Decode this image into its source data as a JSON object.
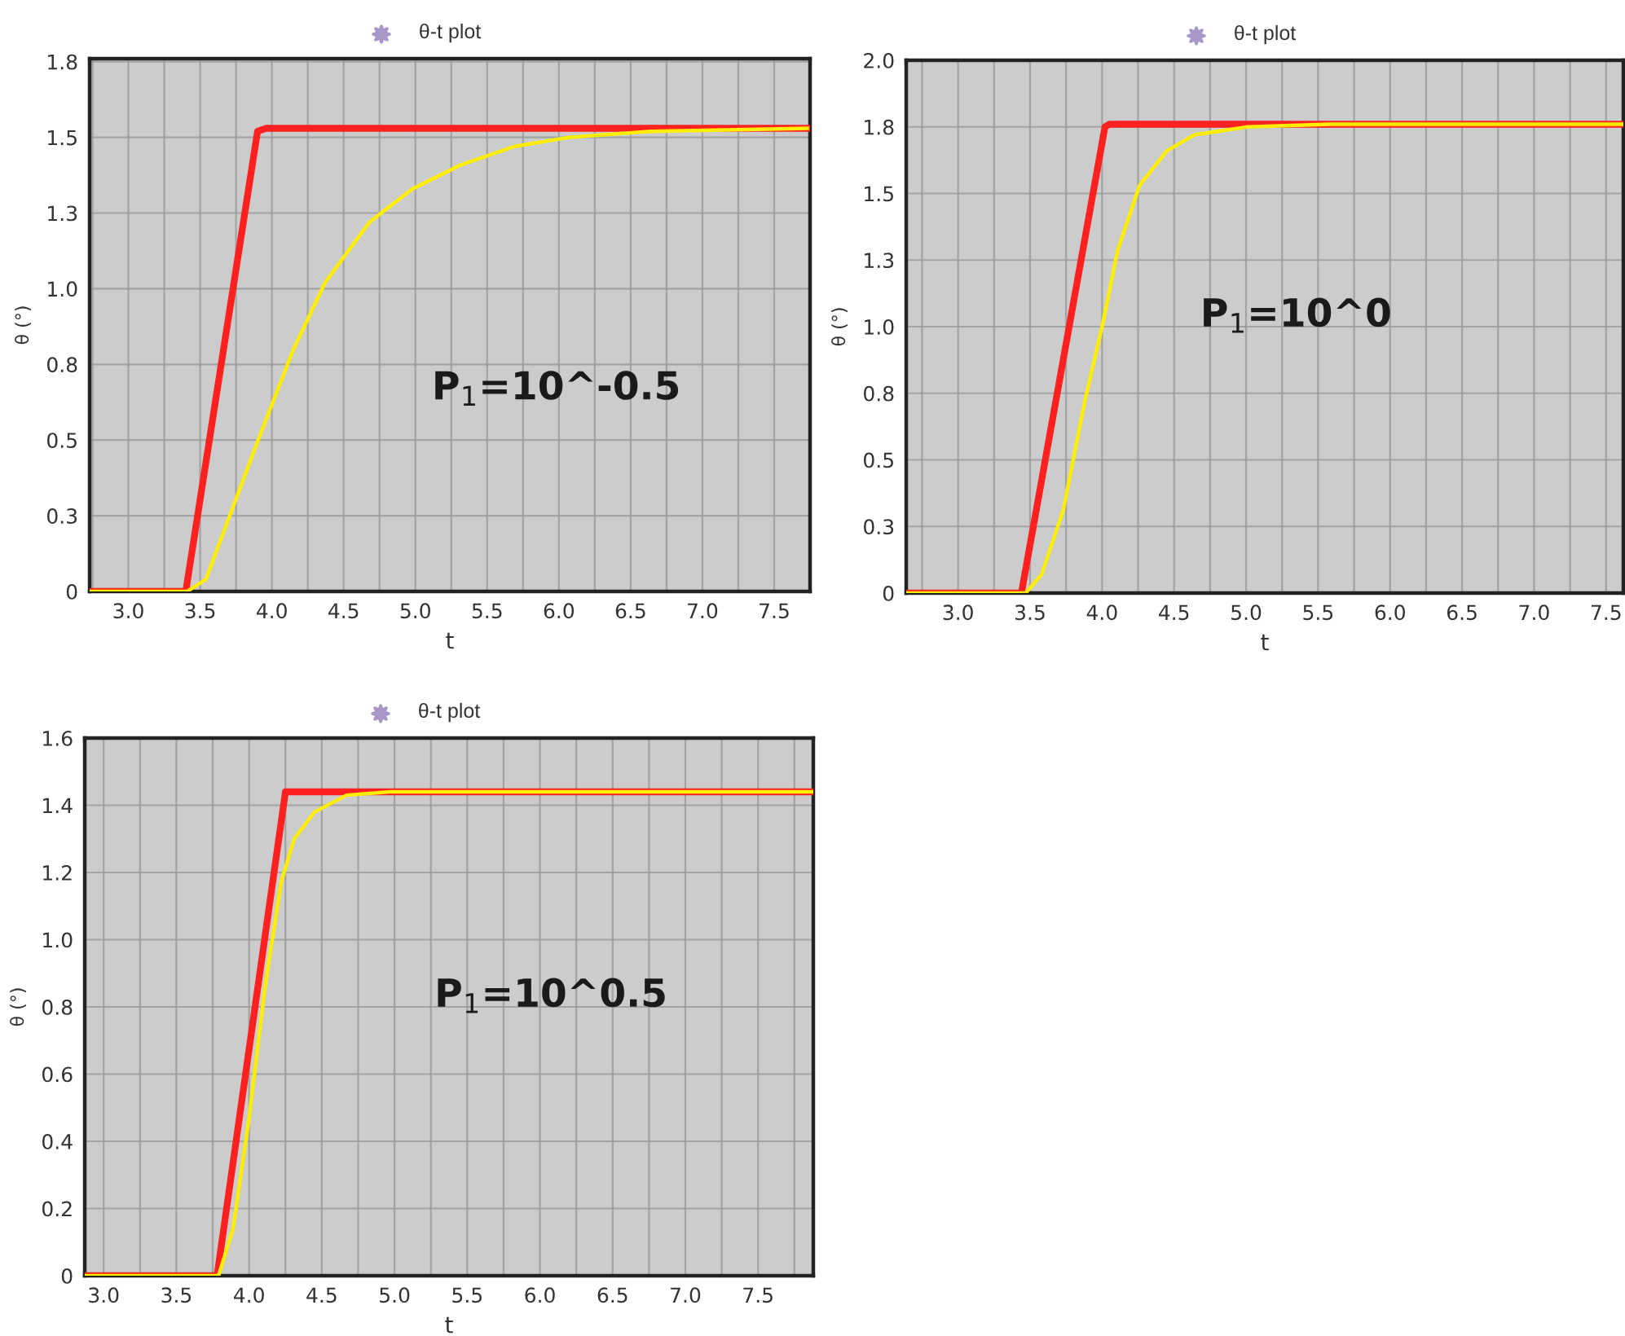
{
  "chart_data": [
    {
      "type": "line",
      "title": "θ-t plot",
      "xlabel": "t",
      "ylabel": "θ (°)",
      "annotations": [
        "P$_{1}$=10^-0.5"
      ],
      "grid": true,
      "line_style": "solid",
      "marker": "none",
      "xlim": [
        2.73,
        7.75
      ],
      "ylim": [
        0,
        1.76
      ],
      "xticks": [
        {
          "value": 2.75,
          "label": null
        },
        {
          "value": 3,
          "label": "3.0"
        },
        {
          "value": 3.25,
          "label": null
        },
        3.5,
        {
          "value": 3.75,
          "label": null
        },
        {
          "value": 4,
          "label": "4.0"
        },
        {
          "value": 4.25,
          "label": null
        },
        4.5,
        {
          "value": 4.75,
          "label": null
        },
        {
          "value": 5,
          "label": "5.0"
        },
        {
          "value": 5.25,
          "label": null
        },
        5.5,
        {
          "value": 5.75,
          "label": null
        },
        {
          "value": 6,
          "label": "6.0"
        },
        {
          "value": 6.25,
          "label": null
        },
        6.5,
        {
          "value": 6.75,
          "label": null
        },
        {
          "value": 7,
          "label": "7.0"
        },
        {
          "value": 7.25,
          "label": null
        },
        7.5
      ],
      "yticks": [
        0,
        {
          "value": 0.25,
          "label": "0.3"
        },
        0.5,
        {
          "value": 0.75,
          "label": "0.8"
        },
        {
          "value": 1,
          "label": "1.0"
        },
        {
          "value": 1.25,
          "label": "1.3"
        },
        1.5,
        {
          "value": 1.75,
          "label": "1.8"
        }
      ],
      "series": [
        {
          "color": "#ff2020",
          "x": [
            2.73,
            3.4,
            3.9,
            3.96,
            7.75
          ],
          "values": [
            0,
            0,
            1.52,
            1.53,
            1.53
          ]
        },
        {
          "color": "#ffee00",
          "x": [
            2.73,
            3.41,
            3.54,
            3.69,
            3.92,
            4.15,
            4.37,
            4.68,
            4.98,
            5.32,
            5.69,
            6.07,
            6.64,
            7.73
          ],
          "values": [
            0,
            0,
            0.04,
            0.23,
            0.52,
            0.8,
            1.02,
            1.22,
            1.33,
            1.41,
            1.47,
            1.5,
            1.52,
            1.53
          ]
        }
      ]
    },
    {
      "type": "line",
      "title": "θ-t plot",
      "xlabel": "t",
      "ylabel": "θ (°)",
      "annotations": [
        "P$_{1}$=10^0"
      ],
      "grid": true,
      "line_style": "solid",
      "marker": "none",
      "xlim": [
        2.64,
        7.62
      ],
      "ylim": [
        0,
        2
      ],
      "xticks": [
        {
          "value": 2.75,
          "label": null
        },
        {
          "value": 3,
          "label": "3.0"
        },
        {
          "value": 3.25,
          "label": null
        },
        3.5,
        {
          "value": 3.75,
          "label": null
        },
        {
          "value": 4,
          "label": "4.0"
        },
        {
          "value": 4.25,
          "label": null
        },
        4.5,
        {
          "value": 4.75,
          "label": null
        },
        {
          "value": 5,
          "label": "5.0"
        },
        {
          "value": 5.25,
          "label": null
        },
        5.5,
        {
          "value": 5.75,
          "label": null
        },
        {
          "value": 6,
          "label": "6.0"
        },
        {
          "value": 6.25,
          "label": null
        },
        6.5,
        {
          "value": 6.75,
          "label": null
        },
        {
          "value": 7,
          "label": "7.0"
        },
        {
          "value": 7.25,
          "label": null
        },
        7.5
      ],
      "yticks": [
        0,
        {
          "value": 0.25,
          "label": "0.3"
        },
        0.5,
        {
          "value": 0.75,
          "label": "0.8"
        },
        {
          "value": 1,
          "label": "1.0"
        },
        {
          "value": 1.25,
          "label": "1.3"
        },
        1.5,
        {
          "value": 1.75,
          "label": "1.8"
        },
        {
          "value": 2,
          "label": "2.0"
        }
      ],
      "series": [
        {
          "color": "#ff2020",
          "x": [
            2.64,
            3.44,
            4.02,
            4.05,
            7.62
          ],
          "values": [
            0,
            0,
            1.75,
            1.76,
            1.76
          ]
        },
        {
          "color": "#ffee00",
          "x": [
            2.64,
            3.47,
            3.58,
            3.73,
            3.88,
            4.0,
            4.11,
            4.26,
            4.45,
            4.64,
            5.01,
            5.58,
            7.62
          ],
          "values": [
            0,
            0,
            0.07,
            0.31,
            0.72,
            1.0,
            1.29,
            1.53,
            1.66,
            1.72,
            1.75,
            1.76,
            1.76
          ]
        }
      ]
    },
    {
      "type": "line",
      "title": "θ-t plot",
      "xlabel": "t",
      "ylabel": "θ (°)",
      "annotations": [
        "P$_{1}$=10^0.5"
      ],
      "grid": true,
      "line_style": "solid",
      "marker": "none",
      "xlim": [
        2.87,
        7.88
      ],
      "ylim": [
        0,
        1.6
      ],
      "xticks": [
        {
          "value": 3,
          "label": "3.0"
        },
        {
          "value": 3.25,
          "label": null
        },
        3.5,
        {
          "value": 3.75,
          "label": null
        },
        {
          "value": 4,
          "label": "4.0"
        },
        {
          "value": 4.25,
          "label": null
        },
        4.5,
        {
          "value": 4.75,
          "label": null
        },
        {
          "value": 5,
          "label": "5.0"
        },
        {
          "value": 5.25,
          "label": null
        },
        5.5,
        {
          "value": 5.75,
          "label": null
        },
        {
          "value": 6,
          "label": "6.0"
        },
        {
          "value": 6.25,
          "label": null
        },
        6.5,
        {
          "value": 6.75,
          "label": null
        },
        {
          "value": 7,
          "label": "7.0"
        },
        {
          "value": 7.25,
          "label": null
        },
        7.5,
        {
          "value": 7.75,
          "label": null
        }
      ],
      "yticks": [
        0,
        0.2,
        0.4,
        0.6,
        0.8,
        {
          "value": 1,
          "label": "1.0"
        },
        1.2,
        1.4,
        1.6
      ],
      "series": [
        {
          "color": "#ff2020",
          "x": [
            2.87,
            3.78,
            4.25,
            4.29,
            7.88
          ],
          "values": [
            0,
            0,
            1.44,
            1.44,
            1.44
          ]
        },
        {
          "color": "#ffee00",
          "x": [
            2.87,
            3.79,
            3.89,
            4.0,
            4.11,
            4.22,
            4.31,
            4.45,
            4.67,
            4.97,
            7.88
          ],
          "values": [
            0,
            0,
            0.14,
            0.47,
            0.86,
            1.17,
            1.3,
            1.38,
            1.43,
            1.44,
            1.44
          ]
        }
      ]
    }
  ]
}
